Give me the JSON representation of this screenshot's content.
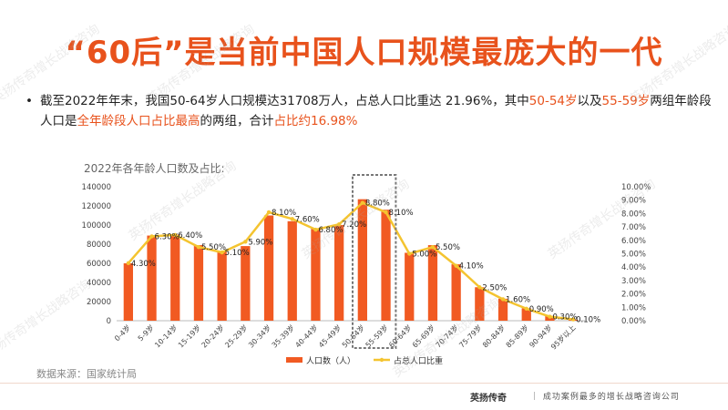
{
  "header": {
    "title": "“60后”是当前中国人口规模最庞大的一代"
  },
  "bullet": {
    "dot": "•",
    "parts": [
      {
        "text": "截至2022年年末，我国50-64岁人口规模达31708万人，占总人口比重达 21.96%，其中",
        "hl": false
      },
      {
        "text": "50-54岁",
        "hl": true
      },
      {
        "text": "以及",
        "hl": false
      },
      {
        "text": "55-59岁",
        "hl": true
      },
      {
        "text": "两组年龄段人口是",
        "hl": false
      },
      {
        "text": "全年龄段人口占比最高",
        "hl": true
      },
      {
        "text": "的两组，合计",
        "hl": false
      },
      {
        "text": "占比约16.98%",
        "hl": true
      }
    ]
  },
  "chart_data": {
    "type": "bar",
    "title": "2022年各年龄人口数及占比:",
    "categories": [
      "0-4岁",
      "5-9岁",
      "10-14岁",
      "15-19岁",
      "20-24岁",
      "25-29岁",
      "30-34岁",
      "35-39岁",
      "40-44岁",
      "45-49岁",
      "50-54岁",
      "55-59岁",
      "60-64岁",
      "65-69岁",
      "70-74岁",
      "75-79岁",
      "80-84岁",
      "85-89岁",
      "90-94岁",
      "95岁以上"
    ],
    "series": [
      {
        "name": "人口数（人）",
        "kind": "bar",
        "axis": "left",
        "values": [
          60000,
          89000,
          90000,
          79000,
          72000,
          78000,
          110000,
          104000,
          96000,
          100000,
          127000,
          116000,
          71000,
          79000,
          59000,
          35000,
          23000,
          13000,
          5000,
          1000
        ]
      },
      {
        "name": "占总人口比重",
        "kind": "line",
        "axis": "right",
        "values": [
          4.3,
          6.3,
          6.4,
          5.5,
          5.1,
          5.9,
          8.1,
          7.6,
          6.8,
          7.2,
          8.8,
          8.1,
          5.0,
          5.5,
          4.1,
          2.5,
          1.6,
          0.9,
          0.3,
          0.1
        ],
        "labels": [
          "4.30%",
          "6.30%",
          "6.40%",
          "5.50%",
          "5.10%",
          "5.90%",
          "8.10%",
          "7.60%",
          "6.80%",
          "7.20%",
          "8.80%",
          "8.10%",
          "5.00%",
          "5.50%",
          "4.10%",
          "2.50%",
          "1.60%",
          "0.90%",
          "0.30%",
          "0.10%"
        ]
      }
    ],
    "y_left": {
      "min": 0,
      "max": 140000,
      "ticks": [
        "0",
        "20000",
        "40000",
        "60000",
        "80000",
        "100000",
        "120000",
        "140000"
      ]
    },
    "y_right": {
      "min": 0,
      "max": 10,
      "ticks": [
        "0.00%",
        "1.00%",
        "2.00%",
        "3.00%",
        "4.00%",
        "5.00%",
        "6.00%",
        "7.00%",
        "8.00%",
        "9.00%",
        "10.00%"
      ]
    },
    "highlight_categories": [
      "50-54岁",
      "55-59岁"
    ],
    "grid": false,
    "legend_position": "bottom",
    "colors": {
      "bar": "#f15a22",
      "line": "#f4c430",
      "highlight_box": "#777777"
    }
  },
  "source": "数据来源：国家统计局",
  "footer": {
    "brand": "英扬传奇",
    "slogan": "｜ 成功案例最多的增长战略咨询公司"
  },
  "watermark": "英扬传奇增长战略咨询"
}
